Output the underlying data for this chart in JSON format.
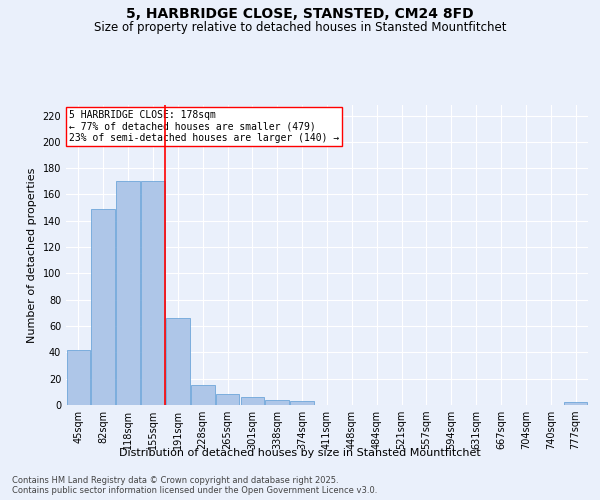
{
  "title": "5, HARBRIDGE CLOSE, STANSTED, CM24 8FD",
  "subtitle": "Size of property relative to detached houses in Stansted Mountfitchet",
  "xlabel": "Distribution of detached houses by size in Stansted Mountfitchet",
  "ylabel": "Number of detached properties",
  "categories": [
    "45sqm",
    "82sqm",
    "118sqm",
    "155sqm",
    "191sqm",
    "228sqm",
    "265sqm",
    "301sqm",
    "338sqm",
    "374sqm",
    "411sqm",
    "448sqm",
    "484sqm",
    "521sqm",
    "557sqm",
    "594sqm",
    "631sqm",
    "667sqm",
    "704sqm",
    "740sqm",
    "777sqm"
  ],
  "values": [
    42,
    149,
    170,
    170,
    66,
    15,
    8,
    6,
    4,
    3,
    0,
    0,
    0,
    0,
    0,
    0,
    0,
    0,
    0,
    0,
    2
  ],
  "bar_color": "#aec6e8",
  "bar_edge_color": "#5b9bd5",
  "vline_index": 3.5,
  "vline_color": "red",
  "annotation_text": "5 HARBRIDGE CLOSE: 178sqm\n← 77% of detached houses are smaller (479)\n23% of semi-detached houses are larger (140) →",
  "annotation_box_color": "white",
  "annotation_box_edge": "red",
  "ylim": [
    0,
    228
  ],
  "yticks": [
    0,
    20,
    40,
    60,
    80,
    100,
    120,
    140,
    160,
    180,
    200,
    220
  ],
  "footer": "Contains HM Land Registry data © Crown copyright and database right 2025.\nContains public sector information licensed under the Open Government Licence v3.0.",
  "bg_color": "#eaf0fb",
  "grid_color": "white",
  "title_fontsize": 10,
  "subtitle_fontsize": 8.5,
  "axis_label_fontsize": 8,
  "tick_fontsize": 7,
  "footer_fontsize": 6,
  "annotation_fontsize": 7
}
